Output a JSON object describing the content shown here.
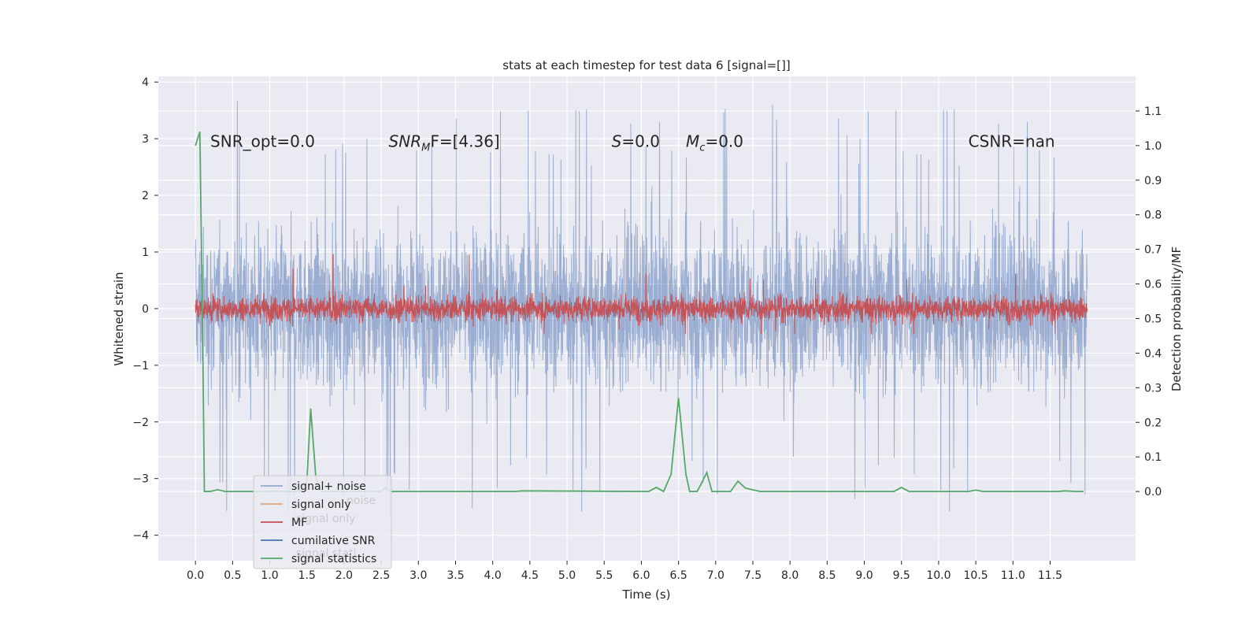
{
  "chart_data": {
    "type": "line",
    "title": "stats at each timestep for test data 6 [signal=[]]",
    "xlabel": "Time (s)",
    "ylabel": "Whitened strain",
    "y2label": "Detection probability/MF",
    "xlim": [
      -0.5,
      12.65
    ],
    "ylim": [
      -4.45,
      4.1
    ],
    "y2lim": [
      -0.2,
      1.2
    ],
    "xticks": [
      0.0,
      0.5,
      1.0,
      1.5,
      2.0,
      2.5,
      3.0,
      3.5,
      4.0,
      4.5,
      5.0,
      5.5,
      6.0,
      6.5,
      7.0,
      7.5,
      8.0,
      8.5,
      9.0,
      9.5,
      10.0,
      10.5,
      11.0,
      11.5
    ],
    "xtick_labels": [
      "0.0",
      "0.5",
      "1.0",
      "1.5",
      "2.0",
      "2.5",
      "3.0",
      "3.5",
      "4.0",
      "4.5",
      "5.0",
      "5.5",
      "6.0",
      "6.5",
      "7.0",
      "7.5",
      "8.0",
      "8.5",
      "9.0",
      "9.5",
      "10.0",
      "10.5",
      "11.0",
      "11.5"
    ],
    "yticks": [
      -4,
      -3,
      -2,
      -1,
      0,
      1,
      2,
      3,
      4
    ],
    "ytick_labels": [
      "−4",
      "−3",
      "−2",
      "−1",
      "0",
      "1",
      "2",
      "3",
      "4"
    ],
    "y2ticks": [
      0.0,
      0.1,
      0.2,
      0.3,
      0.4,
      0.5,
      0.6,
      0.7,
      0.8,
      0.9,
      1.0,
      1.1
    ],
    "y2tick_labels": [
      "0.0",
      "0.1",
      "0.2",
      "0.3",
      "0.4",
      "0.5",
      "0.6",
      "0.7",
      "0.8",
      "0.9",
      "1.0",
      "1.1"
    ],
    "grid": true,
    "legend_position": "lower-left",
    "signal_noise": {
      "t_start": 0.0,
      "t_end": 12.0,
      "typical_range": [
        -2.5,
        2.5
      ],
      "peak_range": [
        -3.7,
        3.7
      ]
    },
    "mf": {
      "t_start": 0.0,
      "t_end": 12.0,
      "typical_range": [
        -0.4,
        0.4
      ],
      "peak_range": [
        -0.45,
        1.0
      ]
    },
    "signal_statistics": {
      "x": [
        0.0,
        0.06,
        0.1,
        0.12,
        0.2,
        0.3,
        0.4,
        1.4,
        1.5,
        1.55,
        1.62,
        1.7,
        2.5,
        2.55,
        2.62,
        2.7,
        4.3,
        4.4,
        6.1,
        6.2,
        6.3,
        6.4,
        6.5,
        6.6,
        6.65,
        6.75,
        6.8,
        6.88,
        6.95,
        7.05,
        7.2,
        7.3,
        7.4,
        7.6,
        9.4,
        9.5,
        9.6,
        10.4,
        10.5,
        10.6,
        11.6,
        11.7,
        11.85,
        11.95
      ],
      "y": [
        1.0,
        1.04,
        0.4,
        0.0,
        0.0,
        0.005,
        0.0,
        0.0,
        0.03,
        0.24,
        0.04,
        0.0,
        0.0,
        0.01,
        0.0,
        0.0,
        0.0,
        0.002,
        0.0,
        0.012,
        0.0,
        0.05,
        0.27,
        0.05,
        0.0,
        0.0,
        0.02,
        0.055,
        0.0,
        0.0,
        0.0,
        0.03,
        0.01,
        0.0,
        0.0,
        0.012,
        0.0,
        0.0,
        0.004,
        0.0,
        0.0,
        0.002,
        0.0,
        0.0
      ]
    },
    "series": [
      {
        "name": "signal+ noise",
        "color": "#4c72b0"
      },
      {
        "name": "signal only",
        "color": "#dd8452"
      },
      {
        "name": "MF",
        "color": "#c44e52"
      },
      {
        "name": "cumilative SNR",
        "color": "#4c72b0"
      },
      {
        "name": "signal statistics",
        "color": "#55a868"
      }
    ],
    "legend_ghost_labels": [
      "noise",
      "signal only",
      "signal stati"
    ],
    "annotations": [
      {
        "id": "snr-opt",
        "text": "SNR_opt=0.0",
        "x": 0.2,
        "y": 2.95
      },
      {
        "id": "snr-mf",
        "text_main": "SNR",
        "text_sub": "M",
        "text_after": "F=[4.36]",
        "x": 2.6,
        "y": 2.95
      },
      {
        "id": "s",
        "text_main": "S",
        "text_after": "=0.0",
        "x": 5.6,
        "y": 2.95
      },
      {
        "id": "mc",
        "text_main": "M",
        "text_sub": "c",
        "text_after": "=0.0",
        "x": 6.6,
        "y": 2.95
      },
      {
        "id": "csnr",
        "text": "CSNR=nan",
        "x": 10.4,
        "y": 2.95
      }
    ]
  }
}
